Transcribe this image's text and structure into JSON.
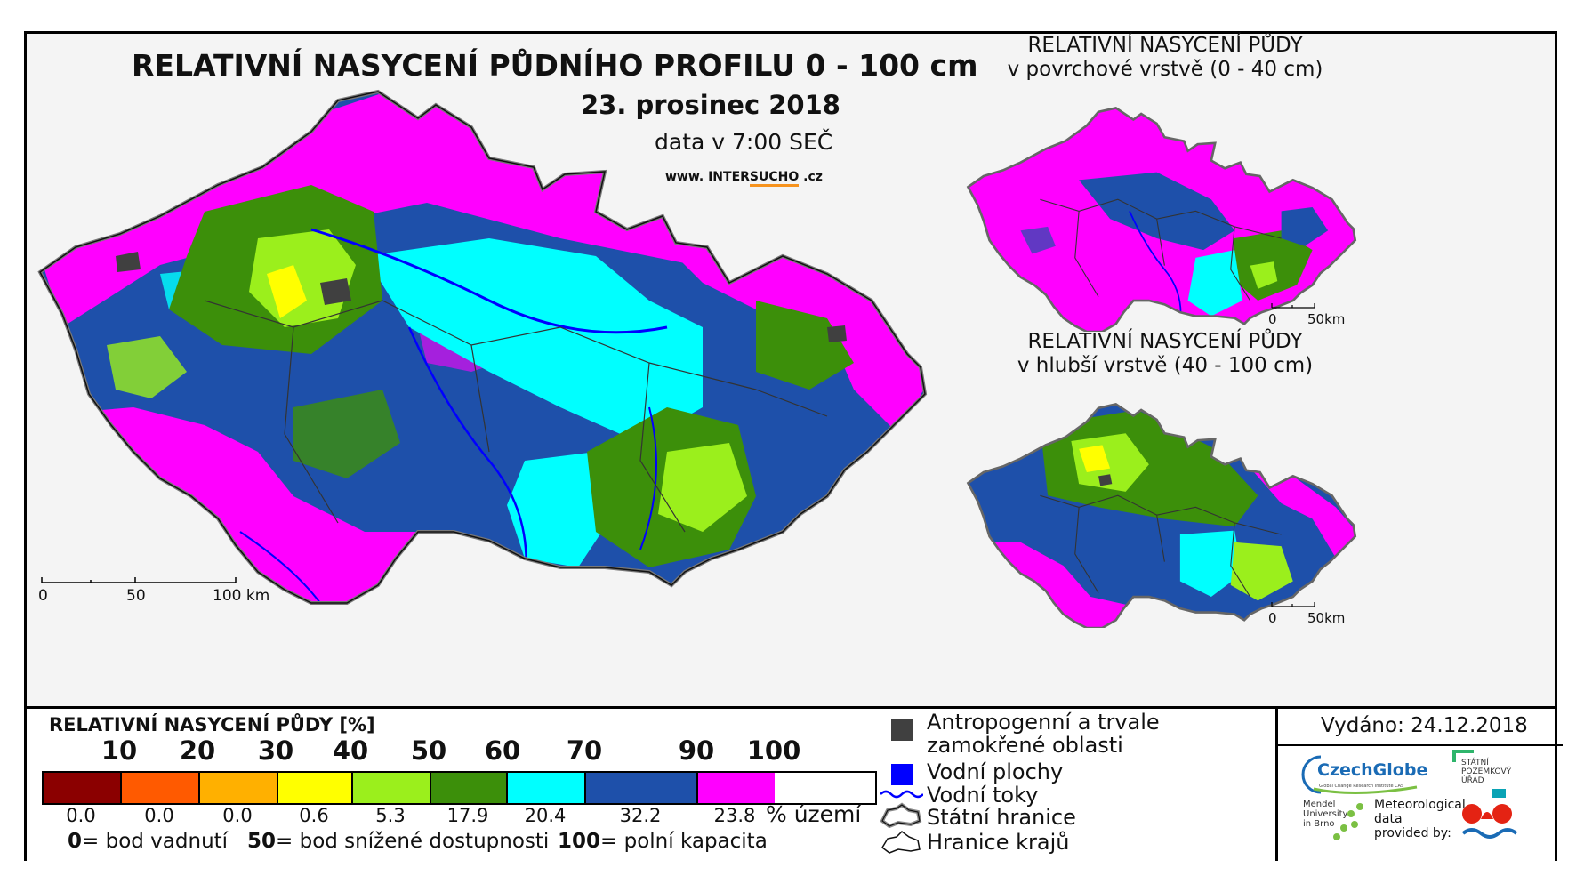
{
  "main_map": {
    "title": "RELATIVNÍ NASYCENÍ PŮDNÍHO PROFILU 0 - 100 cm",
    "date": "23. prosinec 2018",
    "data_time": "data v 7:00 SEČ",
    "url_prefix": "www. INTER",
    "url_highlight": "SUCHO",
    "url_suffix": " .cz",
    "scale_labels": [
      "0",
      "50",
      "100 km"
    ]
  },
  "inset_surface": {
    "title_line1": "RELATIVNÍ NASYCENÍ PŮDY",
    "title_line2": "v povrchové vrstvě (0 - 40 cm)",
    "scale_labels": [
      "0",
      "50km"
    ]
  },
  "inset_deep": {
    "title_line1": "RELATIVNÍ NASYCENÍ PŮDY",
    "title_line2": "v hlubší vrstvě (40 - 100 cm)",
    "scale_labels": [
      "0",
      "50km"
    ]
  },
  "legend": {
    "title": "RELATIVNÍ NASYCENÍ PŮDY [%]",
    "ticks": [
      "10",
      "20",
      "30",
      "40",
      "50",
      "60",
      "70",
      "90",
      "100"
    ],
    "classes": [
      {
        "color": "#8b0000",
        "percent": "0.0"
      },
      {
        "color": "#ff5a00",
        "percent": "0.0"
      },
      {
        "color": "#ffb000",
        "percent": "0.0"
      },
      {
        "color": "#ffff00",
        "percent": "0.6"
      },
      {
        "color": "#9bef1c",
        "percent": "5.3"
      },
      {
        "color": "#3c8f0a",
        "percent": "17.9"
      },
      {
        "color": "#00ffff",
        "percent": "20.4"
      },
      {
        "color": "#1e50aa",
        "percent": "32.2"
      },
      {
        "color": "#ff00ff",
        "percent": "23.8"
      }
    ],
    "percent_unit": "% území",
    "explanations": [
      {
        "value": "0",
        "text": "= bod vadnutí"
      },
      {
        "value": "50",
        "text": "= bod snížené dostupnosti"
      },
      {
        "value": "100",
        "text": "= polní kapacita"
      }
    ]
  },
  "symbols": {
    "anthropogenic_line1": "Antropogenní a trvale",
    "anthropogenic_line2": "zamokřené oblasti",
    "water_areas": "Vodní plochy",
    "water_streams": "Vodní toky",
    "state_border": "Státní hranice",
    "region_border": "Hranice krajů"
  },
  "issued": "Vydáno: 24.12.2018",
  "logos": {
    "czechglobe": "CzechGlobe",
    "czechglobe_sub": "Global Change Research Institute CAS",
    "spu_line1": "STÁTNÍ",
    "spu_line2": "POZEMKOVÝ",
    "spu_line3": "ÚŘAD",
    "mendel_line1": "Mendel",
    "mendel_line2": "University",
    "mendel_line3": "in Brno",
    "met_line1": "Meteorological",
    "met_line2": "data",
    "met_line3": "provided by:"
  },
  "colors": {
    "magenta": "#ff00ff",
    "blue": "#1e50aa",
    "cyan": "#00ffff",
    "darkgreen": "#3c8f0a",
    "lightgreen": "#9bef1c",
    "yellow": "#ffff00",
    "anthropogenic": "#404040",
    "water": "#0000ff"
  }
}
